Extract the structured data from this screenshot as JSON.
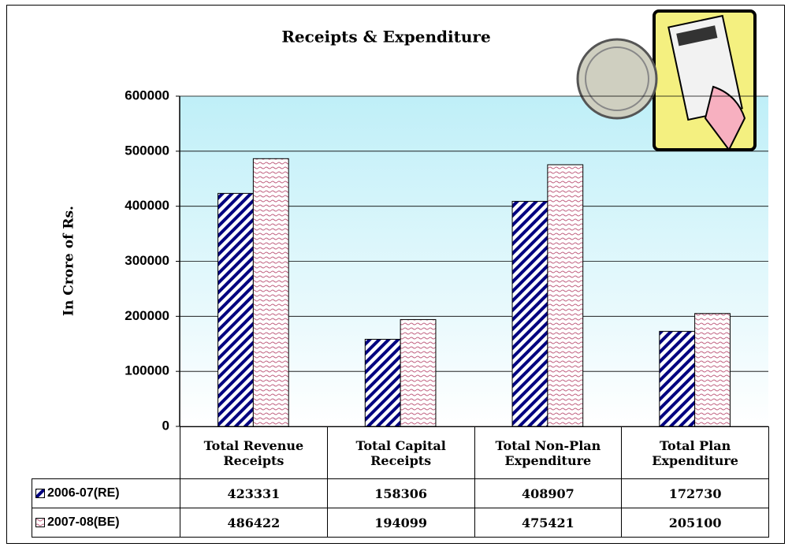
{
  "chart_data": {
    "type": "bar",
    "title": "Receipts & Expenditure",
    "y_label": "In Crore of Rs.",
    "categories": [
      "Total Revenue Receipts",
      "Total Capital Receipts",
      "Total Non-Plan Expenditure",
      "Total Plan Expenditure"
    ],
    "series": [
      {
        "name": "2006-07(RE)",
        "color": "#000080",
        "values": [
          423331,
          158306,
          408907,
          172730
        ]
      },
      {
        "name": "2007-08(BE)",
        "color": "#c06080",
        "values": [
          486422,
          194099,
          475421,
          205100
        ]
      }
    ],
    "ylim": [
      0,
      600000
    ],
    "yticks": [
      0,
      100000,
      200000,
      300000,
      400000,
      500000,
      600000
    ],
    "grid": true
  }
}
